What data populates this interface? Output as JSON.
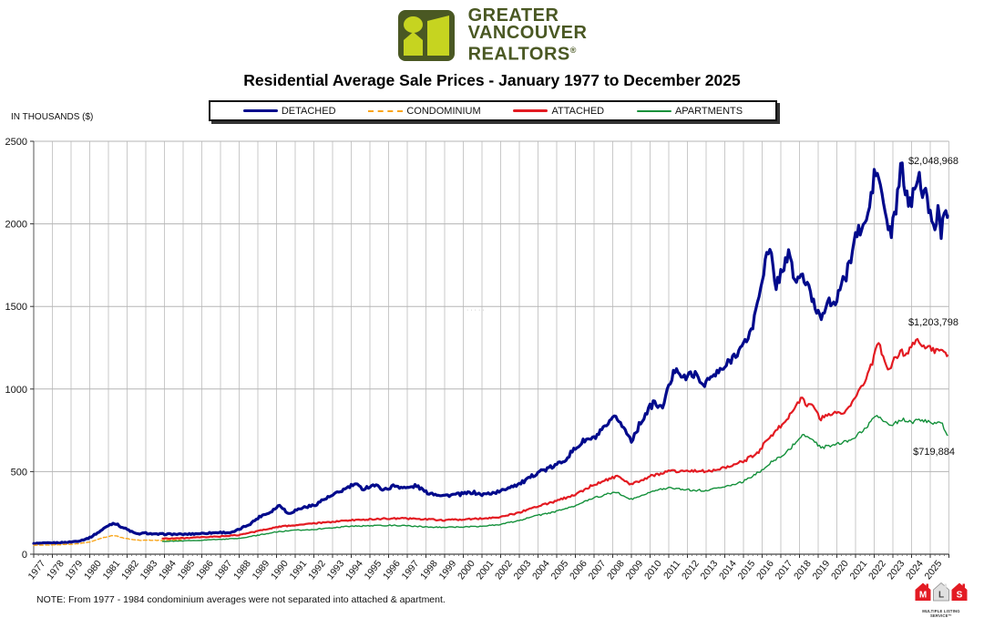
{
  "header": {
    "logo": {
      "line1": "GREATER",
      "line2": "VANCOUVER",
      "line3": "REALTORS",
      "registered": "®",
      "dark_green": "#4a5823",
      "lime": "#c6d420"
    },
    "title": "Residential Average Sale Prices  -  January 1977 to December 2025"
  },
  "chart_data": {
    "type": "line",
    "title": "Residential Average Sale Prices - January 1977 to December 2025",
    "xlabel": "",
    "ylabel": "IN THOUSANDS ($)",
    "ylim": [
      0,
      2500
    ],
    "yticks": [
      0,
      500,
      1000,
      1500,
      2000,
      2500
    ],
    "x_years": [
      1977,
      1978,
      1979,
      1980,
      1981,
      1982,
      1983,
      1984,
      1985,
      1986,
      1987,
      1988,
      1989,
      1990,
      1991,
      1992,
      1993,
      1994,
      1995,
      1996,
      1997,
      1998,
      1999,
      2000,
      2001,
      2002,
      2003,
      2004,
      2005,
      2006,
      2007,
      2008,
      2009,
      2010,
      2011,
      2012,
      2013,
      2014,
      2015,
      2016,
      2017,
      2018,
      2019,
      2020,
      2021,
      2022,
      2023,
      2024,
      2025
    ],
    "grid": true,
    "legend_position": "top",
    "units": "thousands of dollars, monthly averages",
    "series": [
      {
        "name": "DETACHED",
        "color": "#000a8c",
        "style": "solid",
        "width": 3.2,
        "end_label": "$2,048,968",
        "noise": {
          "base": 1.5,
          "rel": 0.022,
          "seed": 1
        },
        "anchors": [
          [
            1977.0,
            65
          ],
          [
            1977.5,
            66
          ],
          [
            1978.0,
            68
          ],
          [
            1978.5,
            70
          ],
          [
            1979.0,
            74
          ],
          [
            1979.5,
            82
          ],
          [
            1980.0,
            100
          ],
          [
            1980.5,
            135
          ],
          [
            1981.0,
            175
          ],
          [
            1981.3,
            190
          ],
          [
            1981.7,
            165
          ],
          [
            1982.0,
            150
          ],
          [
            1982.5,
            122
          ],
          [
            1983.0,
            128
          ],
          [
            1983.5,
            120
          ],
          [
            1984.0,
            122
          ],
          [
            1985.0,
            120
          ],
          [
            1986.0,
            126
          ],
          [
            1987.0,
            132
          ],
          [
            1987.6,
            130
          ],
          [
            1988.0,
            150
          ],
          [
            1988.6,
            185
          ],
          [
            1989.2,
            235
          ],
          [
            1989.6,
            250
          ],
          [
            1990.2,
            300
          ],
          [
            1990.6,
            245
          ],
          [
            1991.0,
            265
          ],
          [
            1991.5,
            285
          ],
          [
            1992.0,
            295
          ],
          [
            1992.5,
            330
          ],
          [
            1993.0,
            355
          ],
          [
            1993.5,
            385
          ],
          [
            1994.2,
            425
          ],
          [
            1994.6,
            395
          ],
          [
            1995.2,
            420
          ],
          [
            1995.8,
            390
          ],
          [
            1996.3,
            415
          ],
          [
            1997.0,
            400
          ],
          [
            1997.5,
            415
          ],
          [
            1998.0,
            375
          ],
          [
            1999.0,
            355
          ],
          [
            2000.0,
            365
          ],
          [
            2000.5,
            375
          ],
          [
            2001.0,
            360
          ],
          [
            2001.5,
            370
          ],
          [
            2002.0,
            380
          ],
          [
            2002.5,
            410
          ],
          [
            2003.0,
            425
          ],
          [
            2003.5,
            455
          ],
          [
            2004.0,
            500
          ],
          [
            2004.5,
            515
          ],
          [
            2005.0,
            540
          ],
          [
            2005.5,
            580
          ],
          [
            2006.0,
            640
          ],
          [
            2006.5,
            690
          ],
          [
            2007.0,
            700
          ],
          [
            2007.5,
            755
          ],
          [
            2008.2,
            835
          ],
          [
            2008.6,
            760
          ],
          [
            2009.0,
            690
          ],
          [
            2009.7,
            840
          ],
          [
            2010.2,
            920
          ],
          [
            2010.6,
            880
          ],
          [
            2011.4,
            1140
          ],
          [
            2011.8,
            1060
          ],
          [
            2012.3,
            1100
          ],
          [
            2012.8,
            1030
          ],
          [
            2013.3,
            1070
          ],
          [
            2014.0,
            1130
          ],
          [
            2014.6,
            1220
          ],
          [
            2015.0,
            1260
          ],
          [
            2015.5,
            1380
          ],
          [
            2016.2,
            1790
          ],
          [
            2016.45,
            1835
          ],
          [
            2016.7,
            1620
          ],
          [
            2017.0,
            1700
          ],
          [
            2017.4,
            1820
          ],
          [
            2017.8,
            1640
          ],
          [
            2018.1,
            1700
          ],
          [
            2018.5,
            1600
          ],
          [
            2018.9,
            1480
          ],
          [
            2019.2,
            1440
          ],
          [
            2019.5,
            1550
          ],
          [
            2019.8,
            1480
          ],
          [
            2020.1,
            1600
          ],
          [
            2020.5,
            1680
          ],
          [
            2021.0,
            1930
          ],
          [
            2021.5,
            1990
          ],
          [
            2021.75,
            2100
          ],
          [
            2022.0,
            2290
          ],
          [
            2022.2,
            2310
          ],
          [
            2022.45,
            2150
          ],
          [
            2022.7,
            2000
          ],
          [
            2022.9,
            1930
          ],
          [
            2023.2,
            2120
          ],
          [
            2023.45,
            2360
          ],
          [
            2023.7,
            2180
          ],
          [
            2023.95,
            2100
          ],
          [
            2024.15,
            2250
          ],
          [
            2024.4,
            2320
          ],
          [
            2024.6,
            2140
          ],
          [
            2024.8,
            2190
          ],
          [
            2025.0,
            2060
          ],
          [
            2025.2,
            1950
          ],
          [
            2025.45,
            2100
          ],
          [
            2025.6,
            1935
          ],
          [
            2025.75,
            2060
          ],
          [
            2025.92,
            2048.968
          ]
        ]
      },
      {
        "name": "CONDOMINIUM",
        "color": "#f9a51a",
        "style": "dashed",
        "width": 1.4,
        "end_label": "",
        "noise": {
          "base": 0.8,
          "rel": 0.012,
          "seed": 2
        },
        "anchors": [
          [
            1977.0,
            54
          ],
          [
            1977.5,
            55
          ],
          [
            1978.0,
            56
          ],
          [
            1978.5,
            58
          ],
          [
            1979.0,
            60
          ],
          [
            1979.5,
            65
          ],
          [
            1980.0,
            74
          ],
          [
            1980.5,
            92
          ],
          [
            1981.0,
            108
          ],
          [
            1981.3,
            114
          ],
          [
            1981.7,
            100
          ],
          [
            1982.2,
            90
          ],
          [
            1982.7,
            84
          ],
          [
            1983.2,
            86
          ],
          [
            1983.7,
            83
          ],
          [
            1984.3,
            85
          ],
          [
            1984.9,
            87
          ]
        ]
      },
      {
        "name": "ATTACHED",
        "color": "#e31b22",
        "style": "solid",
        "width": 2.2,
        "end_label": "$1,203,798",
        "noise": {
          "base": 1.0,
          "rel": 0.015,
          "seed": 3
        },
        "anchors": [
          [
            1983.9,
            95
          ],
          [
            1985.0,
            97
          ],
          [
            1986.0,
            102
          ],
          [
            1987.0,
            108
          ],
          [
            1988.0,
            116
          ],
          [
            1989.0,
            140
          ],
          [
            1990.0,
            165
          ],
          [
            1991.0,
            176
          ],
          [
            1992.0,
            186
          ],
          [
            1993.0,
            196
          ],
          [
            1994.0,
            206
          ],
          [
            1995.0,
            211
          ],
          [
            1996.0,
            216
          ],
          [
            1997.0,
            216
          ],
          [
            1998.0,
            211
          ],
          [
            1999.0,
            206
          ],
          [
            2000.0,
            211
          ],
          [
            2001.0,
            216
          ],
          [
            2002.0,
            226
          ],
          [
            2003.0,
            252
          ],
          [
            2004.0,
            292
          ],
          [
            2005.0,
            322
          ],
          [
            2006.0,
            362
          ],
          [
            2007.0,
            422
          ],
          [
            2008.2,
            472
          ],
          [
            2008.9,
            422
          ],
          [
            2009.5,
            442
          ],
          [
            2010.0,
            472
          ],
          [
            2011.0,
            502
          ],
          [
            2012.0,
            506
          ],
          [
            2013.0,
            502
          ],
          [
            2014.0,
            522
          ],
          [
            2015.0,
            562
          ],
          [
            2015.8,
            620
          ],
          [
            2016.3,
            700
          ],
          [
            2016.8,
            755
          ],
          [
            2017.2,
            795
          ],
          [
            2017.6,
            865
          ],
          [
            2018.1,
            950
          ],
          [
            2018.4,
            895
          ],
          [
            2018.7,
            915
          ],
          [
            2019.1,
            820
          ],
          [
            2019.5,
            845
          ],
          [
            2019.9,
            860
          ],
          [
            2020.3,
            845
          ],
          [
            2020.7,
            905
          ],
          [
            2021.0,
            950
          ],
          [
            2021.5,
            1045
          ],
          [
            2021.9,
            1160
          ],
          [
            2022.2,
            1290
          ],
          [
            2022.5,
            1190
          ],
          [
            2022.8,
            1120
          ],
          [
            2023.1,
            1180
          ],
          [
            2023.4,
            1230
          ],
          [
            2023.7,
            1200
          ],
          [
            2024.0,
            1265
          ],
          [
            2024.3,
            1290
          ],
          [
            2024.6,
            1255
          ],
          [
            2024.9,
            1270
          ],
          [
            2025.2,
            1230
          ],
          [
            2025.5,
            1250
          ],
          [
            2025.7,
            1215
          ],
          [
            2025.92,
            1203.798
          ]
        ]
      },
      {
        "name": "APARTMENTS",
        "color": "#13903a",
        "style": "solid",
        "width": 1.4,
        "end_label": "$719,884",
        "noise": {
          "base": 1.0,
          "rel": 0.013,
          "seed": 4
        },
        "anchors": [
          [
            1983.9,
            78
          ],
          [
            1985.0,
            80
          ],
          [
            1986.0,
            85
          ],
          [
            1987.0,
            90
          ],
          [
            1988.0,
            95
          ],
          [
            1989.0,
            115
          ],
          [
            1990.0,
            135
          ],
          [
            1991.0,
            145
          ],
          [
            1992.0,
            150
          ],
          [
            1993.0,
            160
          ],
          [
            1994.0,
            170
          ],
          [
            1995.0,
            172
          ],
          [
            1996.0,
            175
          ],
          [
            1997.0,
            172
          ],
          [
            1998.0,
            165
          ],
          [
            1999.0,
            162
          ],
          [
            2000.0,
            165
          ],
          [
            2001.0,
            170
          ],
          [
            2002.0,
            180
          ],
          [
            2003.0,
            205
          ],
          [
            2004.0,
            235
          ],
          [
            2005.0,
            260
          ],
          [
            2006.0,
            295
          ],
          [
            2007.0,
            340
          ],
          [
            2008.2,
            380
          ],
          [
            2008.9,
            330
          ],
          [
            2009.5,
            350
          ],
          [
            2010.0,
            380
          ],
          [
            2011.0,
            400
          ],
          [
            2012.0,
            390
          ],
          [
            2013.0,
            385
          ],
          [
            2014.0,
            410
          ],
          [
            2015.0,
            440
          ],
          [
            2016.0,
            510
          ],
          [
            2016.5,
            560
          ],
          [
            2017.0,
            590
          ],
          [
            2017.5,
            640
          ],
          [
            2018.2,
            730
          ],
          [
            2018.7,
            690
          ],
          [
            2019.2,
            645
          ],
          [
            2019.7,
            660
          ],
          [
            2020.2,
            675
          ],
          [
            2020.7,
            690
          ],
          [
            2021.0,
            715
          ],
          [
            2021.5,
            755
          ],
          [
            2022.1,
            845
          ],
          [
            2022.5,
            795
          ],
          [
            2023.0,
            785
          ],
          [
            2023.5,
            815
          ],
          [
            2024.0,
            795
          ],
          [
            2024.3,
            820
          ],
          [
            2024.7,
            805
          ],
          [
            2025.0,
            795
          ],
          [
            2025.3,
            785
          ],
          [
            2025.6,
            800
          ],
          [
            2025.75,
            760
          ],
          [
            2025.92,
            719.884
          ]
        ]
      }
    ],
    "annotations": [
      {
        "text": "$2,048,968",
        "x": 1052,
        "y": 40,
        "anchor": "end"
      },
      {
        "text": "$1,203,798",
        "x": 1052,
        "y": 217,
        "anchor": "end"
      },
      {
        "text": "$719,884",
        "x": 1048,
        "y": 359,
        "anchor": "end"
      }
    ]
  },
  "footer": {
    "note": "NOTE:  From 1977 - 1984 condominium averages were not separated into attached & apartment.",
    "watermark_dots": "·····",
    "mls": {
      "letters": [
        "M",
        "L",
        "S"
      ],
      "caption": "MULTIPLE LISTING SERVICE™",
      "red": "#e31b23",
      "gray": "#e0e0e0"
    }
  }
}
